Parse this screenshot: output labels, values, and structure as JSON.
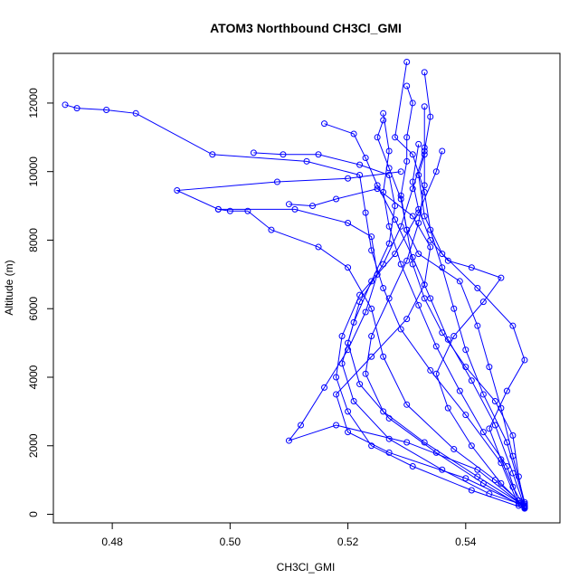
{
  "chart_data": {
    "type": "scatter",
    "title": "ATOM3 Northbound CH3Cl_GMI",
    "xlabel": "CH3Cl_GMI",
    "ylabel": "Altitude (m)",
    "xlim": [
      0.47,
      0.556
    ],
    "ylim": [
      -250,
      13450
    ],
    "xticks": [
      0.48,
      0.5,
      0.52,
      0.54
    ],
    "xtick_labels": [
      "0.48",
      "0.50",
      "0.52",
      "0.54"
    ],
    "yticks": [
      0,
      2000,
      4000,
      6000,
      8000,
      10000,
      12000
    ],
    "ytick_labels": [
      "0",
      "2000",
      "4000",
      "6000",
      "8000",
      "10000",
      "12000"
    ],
    "grid": false,
    "colors": {
      "series": "#0000ff",
      "axis": "#000000"
    },
    "series": [
      {
        "values": [
          [
            0.55,
            200
          ],
          [
            0.548,
            1200
          ],
          [
            0.545,
            2600
          ],
          [
            0.541,
            3900
          ],
          [
            0.537,
            5100
          ],
          [
            0.534,
            6300
          ],
          [
            0.531,
            7500
          ],
          [
            0.528,
            8600
          ],
          [
            0.525,
            9600
          ],
          [
            0.523,
            10400
          ],
          [
            0.521,
            11100
          ],
          [
            0.516,
            11400
          ]
        ]
      },
      {
        "values": [
          [
            0.55,
            180
          ],
          [
            0.543,
            900
          ],
          [
            0.535,
            1800
          ],
          [
            0.527,
            2800
          ],
          [
            0.522,
            3800
          ],
          [
            0.52,
            5000
          ],
          [
            0.522,
            6200
          ],
          [
            0.526,
            7300
          ],
          [
            0.529,
            8400
          ],
          [
            0.531,
            9500
          ],
          [
            0.533,
            10600
          ],
          [
            0.534,
            11600
          ],
          [
            0.533,
            12900
          ]
        ]
      },
      {
        "values": [
          [
            0.549,
            250
          ],
          [
            0.546,
            1500
          ],
          [
            0.54,
            2900
          ],
          [
            0.534,
            4200
          ],
          [
            0.529,
            5400
          ],
          [
            0.526,
            6600
          ],
          [
            0.524,
            7700
          ],
          [
            0.523,
            8800
          ],
          [
            0.522,
            9900
          ],
          [
            0.513,
            10300
          ],
          [
            0.497,
            10500
          ],
          [
            0.484,
            11700
          ],
          [
            0.479,
            11800
          ],
          [
            0.474,
            11850
          ],
          [
            0.472,
            11950
          ]
        ]
      },
      {
        "values": [
          [
            0.55,
            300
          ],
          [
            0.547,
            2100
          ],
          [
            0.543,
            3500
          ],
          [
            0.54,
            4800
          ],
          [
            0.538,
            6000
          ],
          [
            0.536,
            7200
          ],
          [
            0.534,
            8300
          ],
          [
            0.533,
            9400
          ],
          [
            0.531,
            10500
          ],
          [
            0.528,
            11000
          ],
          [
            0.53,
            13200
          ]
        ]
      },
      {
        "values": [
          [
            0.55,
            220
          ],
          [
            0.542,
            1300
          ],
          [
            0.53,
            2100
          ],
          [
            0.518,
            2600
          ],
          [
            0.51,
            2150
          ],
          [
            0.512,
            2600
          ],
          [
            0.516,
            3700
          ],
          [
            0.52,
            4800
          ],
          [
            0.523,
            5900
          ],
          [
            0.525,
            7000
          ],
          [
            0.524,
            8100
          ],
          [
            0.52,
            8500
          ],
          [
            0.511,
            8900
          ],
          [
            0.498,
            8900
          ],
          [
            0.491,
            9450
          ],
          [
            0.508,
            9700
          ],
          [
            0.52,
            9800
          ],
          [
            0.529,
            10000
          ]
        ]
      },
      {
        "values": [
          [
            0.55,
            350
          ],
          [
            0.548,
            1700
          ],
          [
            0.546,
            3100
          ],
          [
            0.544,
            4300
          ],
          [
            0.542,
            5500
          ],
          [
            0.539,
            6800
          ],
          [
            0.532,
            7600
          ],
          [
            0.53,
            8300
          ],
          [
            0.529,
            9200
          ],
          [
            0.527,
            10100
          ],
          [
            0.525,
            11000
          ],
          [
            0.526,
            11500
          ]
        ]
      },
      {
        "values": [
          [
            0.55,
            170
          ],
          [
            0.541,
            700
          ],
          [
            0.531,
            1400
          ],
          [
            0.524,
            2000
          ],
          [
            0.52,
            3000
          ],
          [
            0.518,
            4000
          ],
          [
            0.519,
            5200
          ],
          [
            0.522,
            6400
          ],
          [
            0.528,
            7600
          ],
          [
            0.532,
            8800
          ],
          [
            0.535,
            10000
          ],
          [
            0.536,
            10600
          ]
        ]
      },
      {
        "values": [
          [
            0.549,
            400
          ],
          [
            0.545,
            1000
          ],
          [
            0.538,
            1900
          ],
          [
            0.53,
            3200
          ],
          [
            0.526,
            4600
          ],
          [
            0.524,
            6000
          ],
          [
            0.52,
            7200
          ],
          [
            0.515,
            7800
          ],
          [
            0.507,
            8300
          ],
          [
            0.503,
            8850
          ],
          [
            0.5,
            8850
          ],
          [
            0.498,
            8900
          ]
        ]
      },
      {
        "values": [
          [
            0.55,
            200
          ],
          [
            0.549,
            1100
          ],
          [
            0.548,
            2300
          ],
          [
            0.545,
            3300
          ],
          [
            0.54,
            4300
          ],
          [
            0.536,
            5300
          ],
          [
            0.533,
            6300
          ],
          [
            0.531,
            7300
          ],
          [
            0.53,
            8300
          ],
          [
            0.529,
            9300
          ],
          [
            0.53,
            10300
          ],
          [
            0.53,
            11000
          ],
          [
            0.531,
            12000
          ],
          [
            0.53,
            12500
          ]
        ]
      },
      {
        "values": [
          [
            0.55,
            260
          ],
          [
            0.544,
            600
          ],
          [
            0.536,
            1300
          ],
          [
            0.527,
            2200
          ],
          [
            0.521,
            3300
          ],
          [
            0.519,
            4400
          ],
          [
            0.521,
            5600
          ],
          [
            0.524,
            6800
          ],
          [
            0.527,
            7900
          ],
          [
            0.528,
            9000
          ],
          [
            0.527,
            9900
          ],
          [
            0.522,
            10200
          ],
          [
            0.515,
            10500
          ],
          [
            0.509,
            10500
          ],
          [
            0.504,
            10550
          ]
        ]
      },
      {
        "values": [
          [
            0.55,
            190
          ],
          [
            0.548,
            800
          ],
          [
            0.546,
            1600
          ],
          [
            0.544,
            2500
          ],
          [
            0.547,
            3600
          ],
          [
            0.55,
            4500
          ],
          [
            0.548,
            5500
          ],
          [
            0.542,
            6600
          ],
          [
            0.536,
            7600
          ],
          [
            0.533,
            8700
          ],
          [
            0.532,
            9900
          ],
          [
            0.533,
            10500
          ]
        ]
      },
      {
        "values": [
          [
            0.55,
            230
          ],
          [
            0.54,
            1050
          ],
          [
            0.527,
            1800
          ],
          [
            0.52,
            2400
          ],
          [
            0.518,
            3500
          ],
          [
            0.524,
            4600
          ],
          [
            0.53,
            5700
          ],
          [
            0.533,
            6700
          ],
          [
            0.534,
            7800
          ],
          [
            0.531,
            8700
          ],
          [
            0.525,
            9500
          ],
          [
            0.518,
            9200
          ],
          [
            0.514,
            9000
          ],
          [
            0.51,
            9050
          ]
        ]
      },
      {
        "values": [
          [
            0.549,
            320
          ],
          [
            0.547,
            1400
          ],
          [
            0.543,
            2400
          ],
          [
            0.539,
            3600
          ],
          [
            0.535,
            4900
          ],
          [
            0.532,
            6100
          ],
          [
            0.529,
            7300
          ],
          [
            0.527,
            8400
          ],
          [
            0.526,
            9400
          ],
          [
            0.527,
            10600
          ],
          [
            0.526,
            11700
          ]
        ]
      },
      {
        "values": [
          [
            0.55,
            210
          ],
          [
            0.546,
            900
          ],
          [
            0.541,
            2000
          ],
          [
            0.537,
            3100
          ],
          [
            0.535,
            4100
          ],
          [
            0.538,
            5200
          ],
          [
            0.543,
            6200
          ],
          [
            0.546,
            6900
          ],
          [
            0.541,
            7200
          ],
          [
            0.537,
            7400
          ],
          [
            0.534,
            8000
          ],
          [
            0.532,
            8900
          ],
          [
            0.531,
            9700
          ],
          [
            0.532,
            10800
          ]
        ]
      },
      {
        "values": [
          [
            0.55,
            240
          ],
          [
            0.542,
            1100
          ],
          [
            0.533,
            2100
          ],
          [
            0.526,
            3000
          ],
          [
            0.523,
            4100
          ],
          [
            0.524,
            5200
          ],
          [
            0.527,
            6300
          ],
          [
            0.53,
            7400
          ],
          [
            0.532,
            8500
          ],
          [
            0.533,
            9600
          ],
          [
            0.533,
            10700
          ],
          [
            0.533,
            11900
          ]
        ]
      }
    ]
  }
}
